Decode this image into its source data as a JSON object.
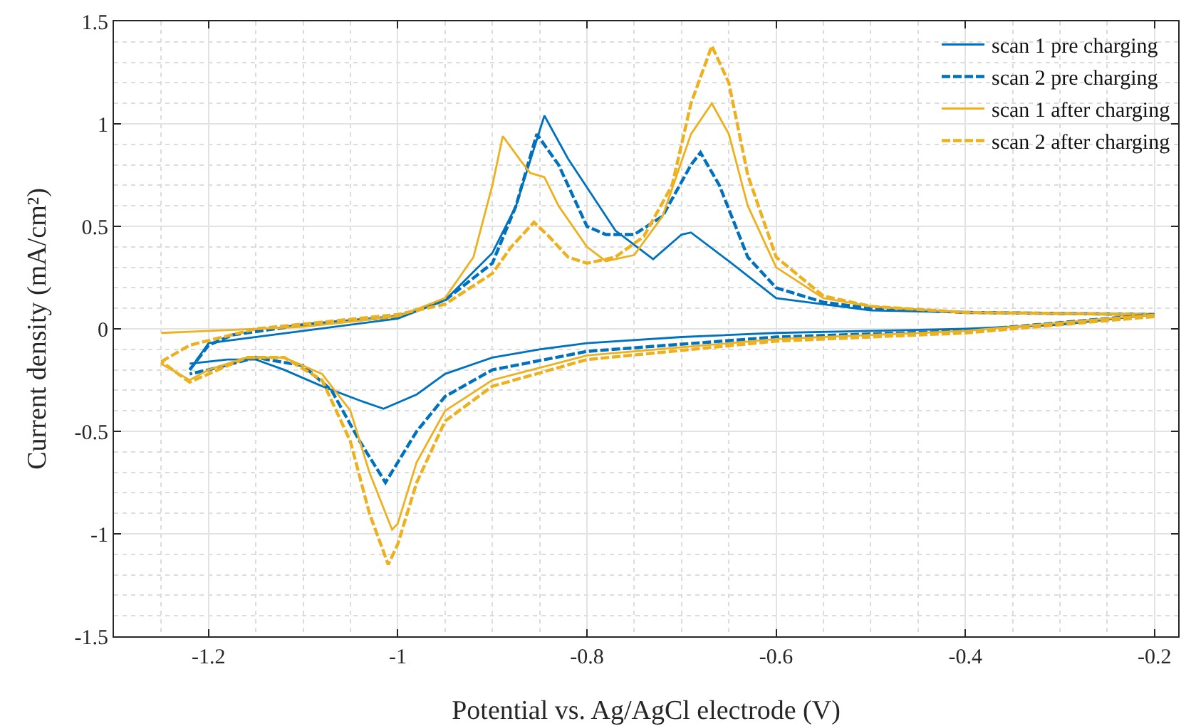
{
  "chart_data": {
    "type": "line",
    "xlabel": "Potential vs. Ag/AgCl electrode (V)",
    "ylabel": "Current density (mA/cm²)",
    "xlim": [
      -1.3,
      -0.175
    ],
    "xticks": [
      -1.2,
      -1,
      -0.8,
      -0.6,
      -0.4,
      -0.2
    ],
    "ylim": [
      -1.5,
      1.5
    ],
    "yticks": [
      -1.5,
      -1,
      -0.5,
      0,
      0.5,
      1,
      1.5
    ],
    "grid": true,
    "legend": "top right",
    "marker": "none",
    "series": [
      {
        "name": "scan 1 pre charging",
        "color": "#0072bd",
        "line_style": "solid",
        "x": [
          -1.22,
          -1.2,
          -1.1,
          -1.0,
          -0.95,
          -0.9,
          -0.875,
          -0.845,
          -0.82,
          -0.77,
          -0.73,
          -0.7,
          -0.69,
          -0.65,
          -0.6,
          -0.5,
          -0.4,
          -0.2
        ],
        "values": [
          -0.2,
          -0.07,
          -0.01,
          0.05,
          0.14,
          0.37,
          0.6,
          1.04,
          0.83,
          0.48,
          0.34,
          0.46,
          0.47,
          0.33,
          0.15,
          0.09,
          0.08,
          0.07
        ]
      },
      {
        "name": "scan 2 pre charging",
        "color": "#0072bd",
        "line_style": "dashed",
        "x": [
          -1.22,
          -1.2,
          -1.175,
          -1.1,
          -1.0,
          -0.95,
          -0.9,
          -0.875,
          -0.853,
          -0.83,
          -0.8,
          -0.78,
          -0.75,
          -0.72,
          -0.69,
          -0.68,
          -0.66,
          -0.63,
          -0.6,
          -0.55,
          -0.5,
          -0.4,
          -0.2
        ],
        "values": [
          -0.2,
          -0.08,
          -0.03,
          0.02,
          0.06,
          0.14,
          0.32,
          0.6,
          0.95,
          0.8,
          0.5,
          0.46,
          0.46,
          0.55,
          0.8,
          0.86,
          0.7,
          0.35,
          0.2,
          0.13,
          0.1,
          0.08,
          0.07
        ]
      },
      {
        "name": "scan 1 after charging",
        "color": "#edb120",
        "line_style": "solid",
        "x": [
          -1.25,
          -1.1,
          -1.0,
          -0.95,
          -0.92,
          -0.9,
          -0.889,
          -0.87,
          -0.86,
          -0.845,
          -0.83,
          -0.8,
          -0.78,
          -0.75,
          -0.72,
          -0.69,
          -0.668,
          -0.65,
          -0.63,
          -0.6,
          -0.55,
          -0.5,
          -0.4,
          -0.2
        ],
        "values": [
          -0.02,
          0.01,
          0.06,
          0.15,
          0.35,
          0.7,
          0.94,
          0.82,
          0.76,
          0.74,
          0.6,
          0.4,
          0.33,
          0.36,
          0.55,
          0.95,
          1.1,
          0.95,
          0.6,
          0.3,
          0.15,
          0.11,
          0.08,
          0.07
        ]
      },
      {
        "name": "scan 2 after charging",
        "color": "#edb120",
        "line_style": "dashed",
        "x": [
          -1.25,
          -1.22,
          -1.15,
          -1.0,
          -0.95,
          -0.9,
          -0.88,
          -0.856,
          -0.84,
          -0.82,
          -0.8,
          -0.77,
          -0.74,
          -0.71,
          -0.69,
          -0.668,
          -0.65,
          -0.63,
          -0.6,
          -0.55,
          -0.5,
          -0.4,
          -0.2
        ],
        "values": [
          -0.16,
          -0.08,
          0,
          0.07,
          0.12,
          0.27,
          0.4,
          0.52,
          0.45,
          0.35,
          0.32,
          0.35,
          0.45,
          0.7,
          1.1,
          1.38,
          1.2,
          0.75,
          0.35,
          0.16,
          0.11,
          0.08,
          0.07
        ]
      },
      {
        "color": "#0072bd",
        "line_style": "solid",
        "x": [
          -0.2,
          -0.3,
          -0.4,
          -0.5,
          -0.6,
          -0.7,
          -0.8,
          -0.85,
          -0.9,
          -0.95,
          -0.98,
          -1.015,
          -1.04,
          -1.08,
          -1.12,
          -1.15,
          -1.18,
          -1.22
        ],
        "values": [
          0.07,
          0.02,
          0,
          -0.01,
          -0.02,
          -0.04,
          -0.07,
          -0.1,
          -0.14,
          -0.22,
          -0.32,
          -0.39,
          -0.35,
          -0.28,
          -0.2,
          -0.15,
          -0.15,
          -0.17
        ]
      },
      {
        "color": "#0072bd",
        "line_style": "dashed",
        "x": [
          -0.2,
          -0.4,
          -0.6,
          -0.8,
          -0.9,
          -0.95,
          -0.98,
          -1.013,
          -1.04,
          -1.07,
          -1.1,
          -1.15,
          -1.2,
          -1.22
        ],
        "values": [
          0.07,
          -0.01,
          -0.04,
          -0.11,
          -0.2,
          -0.33,
          -0.5,
          -0.75,
          -0.55,
          -0.3,
          -0.18,
          -0.14,
          -0.2,
          -0.22
        ]
      },
      {
        "color": "#edb120",
        "line_style": "solid",
        "x": [
          -0.2,
          -0.4,
          -0.6,
          -0.8,
          -0.9,
          -0.95,
          -0.98,
          -1.0,
          -1.006,
          -1.03,
          -1.05,
          -1.08,
          -1.12,
          -1.16,
          -1.2,
          -1.22,
          -1.25
        ],
        "values": [
          0.07,
          -0.01,
          -0.05,
          -0.13,
          -0.25,
          -0.4,
          -0.65,
          -0.95,
          -0.98,
          -0.7,
          -0.4,
          -0.22,
          -0.14,
          -0.14,
          -0.2,
          -0.25,
          -0.17
        ]
      },
      {
        "color": "#edb120",
        "line_style": "dashed",
        "x": [
          -0.2,
          -0.4,
          -0.6,
          -0.8,
          -0.9,
          -0.95,
          -0.98,
          -1.0,
          -1.01,
          -1.03,
          -1.05,
          -1.08,
          -1.12,
          -1.16,
          -1.2,
          -1.22,
          -1.25
        ],
        "values": [
          0.06,
          -0.02,
          -0.06,
          -0.15,
          -0.28,
          -0.45,
          -0.75,
          -1.05,
          -1.15,
          -0.9,
          -0.55,
          -0.25,
          -0.14,
          -0.14,
          -0.22,
          -0.26,
          -0.16
        ]
      }
    ]
  }
}
